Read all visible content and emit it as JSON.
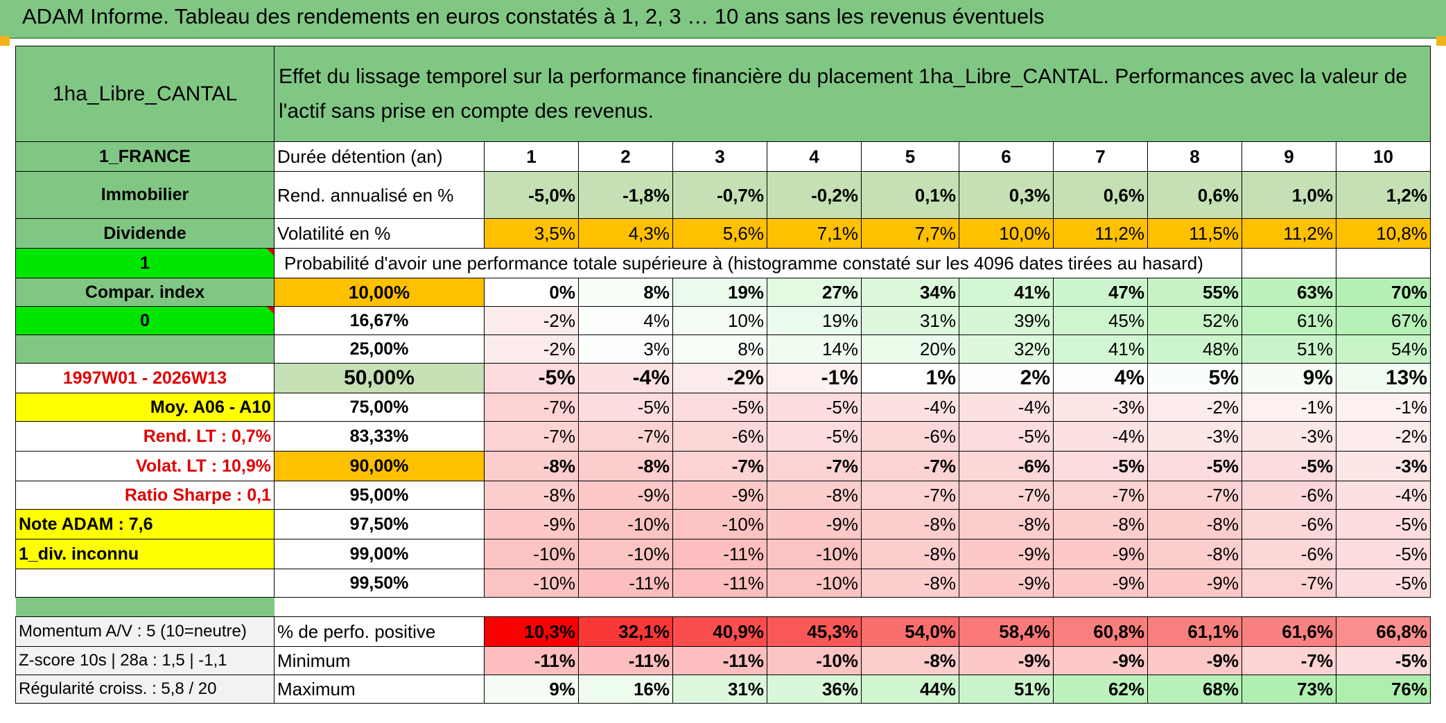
{
  "title": "ADAM Informe. Tableau des rendements en euros constatés à 1, 2, 3 … 10 ans sans les revenus éventuels",
  "asset_name": "1ha_Libre_CANTAL",
  "header_text": "Effet du lissage temporel sur la performance financière du placement 1ha_Libre_CANTAL. Performances avec la valeur de l'actif sans prise en compte des revenus.",
  "left": {
    "country": "1_FRANCE",
    "category": "Immobilier",
    "dividend": "Dividende",
    "flag1": "1",
    "compar_index": "Compar. index",
    "flag0": "0",
    "period": "1997W01 - 2026W13",
    "moy": "Moy. A06 - A10",
    "rend_lt": "Rend. LT :   0,7%",
    "volat_lt": "Volat. LT :   10,9%",
    "sharpe": "Ratio Sharpe :   0,1",
    "note": "Note ADAM : 7,6",
    "div": "1_div. inconnu"
  },
  "years_label": "Durée détention (an)",
  "years": [
    "1",
    "2",
    "3",
    "4",
    "5",
    "6",
    "7",
    "8",
    "9",
    "10"
  ],
  "rend_label": "Rend. annualisé en %",
  "rend": [
    "-5,0%",
    "-1,8%",
    "-0,7%",
    "-0,2%",
    "0,1%",
    "0,3%",
    "0,6%",
    "0,6%",
    "1,0%",
    "1,2%"
  ],
  "vol_label": "Volatilité en %",
  "vol": [
    "3,5%",
    "4,3%",
    "5,6%",
    "7,1%",
    "7,7%",
    "10,0%",
    "11,2%",
    "11,5%",
    "11,2%",
    "10,8%"
  ],
  "prob_header": "Probabilité d'avoir une performance totale supérieure à (histogramme constaté sur les 4096 dates tirées au hasard)",
  "prob_rows": [
    {
      "label": "10,00%",
      "values": [
        "0%",
        "8%",
        "19%",
        "27%",
        "34%",
        "41%",
        "47%",
        "55%",
        "63%",
        "70%"
      ]
    },
    {
      "label": "16,67%",
      "values": [
        "-2%",
        "4%",
        "10%",
        "19%",
        "31%",
        "39%",
        "45%",
        "52%",
        "61%",
        "67%"
      ]
    },
    {
      "label": "25,00%",
      "values": [
        "-2%",
        "3%",
        "8%",
        "14%",
        "20%",
        "32%",
        "41%",
        "48%",
        "51%",
        "54%"
      ]
    },
    {
      "label": "50,00%",
      "values": [
        "-5%",
        "-4%",
        "-2%",
        "-1%",
        "1%",
        "2%",
        "4%",
        "5%",
        "9%",
        "13%"
      ]
    },
    {
      "label": "75,00%",
      "values": [
        "-7%",
        "-5%",
        "-5%",
        "-5%",
        "-4%",
        "-4%",
        "-3%",
        "-2%",
        "-1%",
        "-1%"
      ]
    },
    {
      "label": "83,33%",
      "values": [
        "-7%",
        "-7%",
        "-6%",
        "-5%",
        "-6%",
        "-5%",
        "-4%",
        "-3%",
        "-3%",
        "-2%"
      ]
    },
    {
      "label": "90,00%",
      "values": [
        "-8%",
        "-8%",
        "-7%",
        "-7%",
        "-7%",
        "-6%",
        "-5%",
        "-5%",
        "-5%",
        "-3%"
      ]
    },
    {
      "label": "95,00%",
      "values": [
        "-8%",
        "-9%",
        "-9%",
        "-8%",
        "-7%",
        "-7%",
        "-7%",
        "-7%",
        "-6%",
        "-4%"
      ]
    },
    {
      "label": "97,50%",
      "values": [
        "-9%",
        "-10%",
        "-10%",
        "-9%",
        "-8%",
        "-8%",
        "-8%",
        "-8%",
        "-6%",
        "-5%"
      ]
    },
    {
      "label": "99,00%",
      "values": [
        "-10%",
        "-10%",
        "-11%",
        "-10%",
        "-8%",
        "-9%",
        "-9%",
        "-8%",
        "-6%",
        "-5%"
      ]
    },
    {
      "label": "99,50%",
      "values": [
        "-10%",
        "-11%",
        "-11%",
        "-10%",
        "-8%",
        "-9%",
        "-9%",
        "-9%",
        "-7%",
        "-5%"
      ]
    }
  ],
  "bottom": {
    "momentum": "Momentum A/V : 5 (10=neutre)",
    "zscore": "Z-score 10s | 28a : 1,5 | -1,1",
    "regularite": "Régularité croiss. : 5,8 / 20",
    "pos_label": "% de perfo. positive",
    "pos": [
      "10,3%",
      "32,1%",
      "40,9%",
      "45,3%",
      "54,0%",
      "58,4%",
      "60,8%",
      "61,1%",
      "61,6%",
      "66,8%"
    ],
    "min_label": "Minimum",
    "min": [
      "-11%",
      "-11%",
      "-11%",
      "-10%",
      "-8%",
      "-9%",
      "-9%",
      "-9%",
      "-7%",
      "-5%"
    ],
    "max_label": "Maximum",
    "max": [
      "9%",
      "16%",
      "31%",
      "36%",
      "44%",
      "51%",
      "62%",
      "68%",
      "73%",
      "76%"
    ]
  },
  "colors": {
    "header_green": "#81c784",
    "lime": "#00e600",
    "orange": "#ffc000",
    "yellow": "#ffff00",
    "red_text": "#e00000"
  }
}
